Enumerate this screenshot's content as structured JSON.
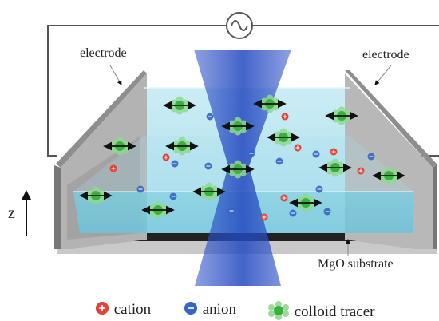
{
  "labels": {
    "electrode_left": "electrode",
    "electrode_right": "electrode",
    "substrate": "MgO substrate",
    "axis": "z"
  },
  "legend": [
    {
      "id": "cation",
      "label": "cation",
      "icon": "plus-circle-icon",
      "color": "#e0443a"
    },
    {
      "id": "anion",
      "label": "anion",
      "icon": "minus-circle-icon",
      "color": "#3566c4"
    },
    {
      "id": "tracer",
      "label": "colloid tracer",
      "icon": "colloid-tracer-icon",
      "color": "#3cbf3c"
    }
  ],
  "colors": {
    "liquid": "#8ed4e6",
    "electrode": "#a9a9a9",
    "beam": "#2f55c8",
    "circuit": "#555555",
    "tracer_glow": "#8fd88f",
    "tracer_core": "#38b13c"
  },
  "icons": {
    "ac_source": "ac-source-icon",
    "z_arrow": "up-arrow-icon",
    "oscillation_arrow": "double-arrow-icon"
  }
}
